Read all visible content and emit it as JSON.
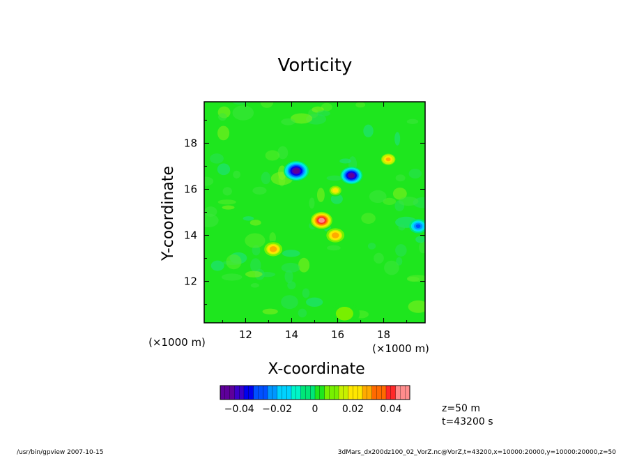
{
  "chart_data": {
    "type": "heatmap",
    "title": "Vorticity",
    "xlabel": "X-coordinate",
    "ylabel": "Y-coordinate",
    "x_scale_label": "(×1000 m)",
    "y_scale_label": "(×1000 m)",
    "xlim": [
      10.2,
      19.8
    ],
    "ylim": [
      10.2,
      19.8
    ],
    "x_ticks": [
      12,
      14,
      16,
      18
    ],
    "y_ticks": [
      12,
      14,
      16,
      18
    ],
    "x_tick_labels": [
      "12",
      "14",
      "16",
      "18"
    ],
    "y_tick_labels": [
      "12",
      "14",
      "16",
      "18"
    ],
    "background_value": 0.0,
    "vortices": [
      {
        "x": 14.2,
        "y": 16.8,
        "value": -0.05,
        "sigma": 0.25
      },
      {
        "x": 16.6,
        "y": 16.6,
        "value": -0.05,
        "sigma": 0.22
      },
      {
        "x": 15.3,
        "y": 14.65,
        "value": 0.05,
        "sigma": 0.24
      },
      {
        "x": 15.9,
        "y": 14.0,
        "value": 0.035,
        "sigma": 0.2
      },
      {
        "x": 13.2,
        "y": 13.4,
        "value": 0.035,
        "sigma": 0.2
      },
      {
        "x": 18.2,
        "y": 17.3,
        "value": 0.032,
        "sigma": 0.18
      },
      {
        "x": 19.5,
        "y": 14.4,
        "value": -0.03,
        "sigma": 0.18
      },
      {
        "x": 15.9,
        "y": 15.95,
        "value": 0.025,
        "sigma": 0.15
      },
      {
        "x": 16.3,
        "y": 10.6,
        "value": 0.012,
        "sigma": 0.3
      }
    ],
    "colorbar": {
      "range": [
        -0.05,
        0.05
      ],
      "tick_values": [
        -0.04,
        -0.02,
        0,
        0.02,
        0.04
      ],
      "tick_labels": [
        "−0.04",
        "−0.02",
        "0",
        "0.02",
        "0.04"
      ],
      "colors": [
        "#5e009a",
        "#3b00c8",
        "#0000ee",
        "#0050ff",
        "#0096ff",
        "#00d2ff",
        "#00f5c8",
        "#00e678",
        "#1ee61e",
        "#78f000",
        "#c8f000",
        "#ffe600",
        "#ffaa00",
        "#ff6a00",
        "#ff2828",
        "#ff8c8c"
      ]
    }
  },
  "annotations": {
    "z_label": "z=50 m",
    "t_label": "t=43200 s",
    "footer_left": "/usr/bin/gpview  2007-10-15",
    "footer_right": "3dMars_dx200dz100_02_VorZ.nc@VorZ,t=43200,x=10000:20000,y=10000:20000,z=50"
  }
}
